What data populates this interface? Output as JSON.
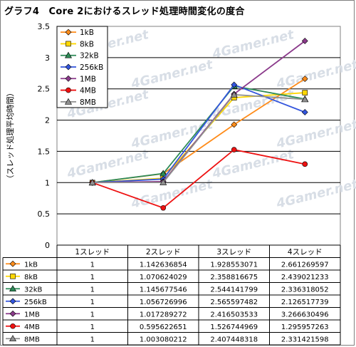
{
  "chart_data": {
    "type": "line",
    "title": "グラフ4　Core 2におけるスレッド処理時間変化の度合",
    "ylabel": "（スレッド処理平均時間）",
    "ylim": [
      0,
      3.5
    ],
    "yticks": [
      "0",
      "0.5",
      "1",
      "1.5",
      "2",
      "2.5",
      "3",
      "3.5"
    ],
    "y_values": [
      0,
      0.5,
      1,
      1.5,
      2,
      2.5,
      3,
      3.5
    ],
    "categories": [
      "1スレッド",
      "2スレッド",
      "3スレッド",
      "4スレッド"
    ],
    "grid": true,
    "legend_position": "top-left",
    "watermark": "4Gamer.net",
    "series": [
      {
        "name": "1kB",
        "color": "#ff8c1a",
        "marker": "diamond",
        "values": [
          1,
          1.142636854,
          1.928553071,
          2.661269597
        ],
        "labels": [
          "1",
          "1.142636854",
          "1.928553071",
          "2.661269597"
        ]
      },
      {
        "name": "8kB",
        "color": "#ffd700",
        "marker": "square",
        "values": [
          1,
          1.070624029,
          2.358816675,
          2.439021233
        ],
        "labels": [
          "1",
          "1.070624029",
          "2.358816675",
          "2.439021233"
        ]
      },
      {
        "name": "32kB",
        "color": "#2e8b57",
        "marker": "triangle",
        "values": [
          1,
          1.145677546,
          2.544141799,
          2.336318052
        ],
        "labels": [
          "1",
          "1.145677546",
          "2.544141799",
          "2.336318052"
        ]
      },
      {
        "name": "256kB",
        "color": "#3355dd",
        "marker": "diamond",
        "values": [
          1,
          1.056726996,
          2.565597482,
          2.126517739
        ],
        "labels": [
          "1",
          "1.056726996",
          "2.565597482",
          "2.126517739"
        ]
      },
      {
        "name": "1MB",
        "color": "#8b3a8b",
        "marker": "diamond",
        "values": [
          1,
          1.017289272,
          2.416503533,
          3.266630496
        ],
        "labels": [
          "1",
          "1.017289272",
          "2.416503533",
          "3.266630496"
        ]
      },
      {
        "name": "4MB",
        "color": "#ee1111",
        "marker": "circle",
        "values": [
          1,
          0.595622651,
          1.526744969,
          1.295957263
        ],
        "labels": [
          "1",
          "0.595622651",
          "1.526744969",
          "1.295957263"
        ]
      },
      {
        "name": "8MB",
        "color": "#909090",
        "marker": "triangle",
        "values": [
          1,
          1.003080212,
          2.407448318,
          2.331421598
        ],
        "labels": [
          "1",
          "1.003080212",
          "2.407448318",
          "2.331421598"
        ]
      }
    ]
  }
}
